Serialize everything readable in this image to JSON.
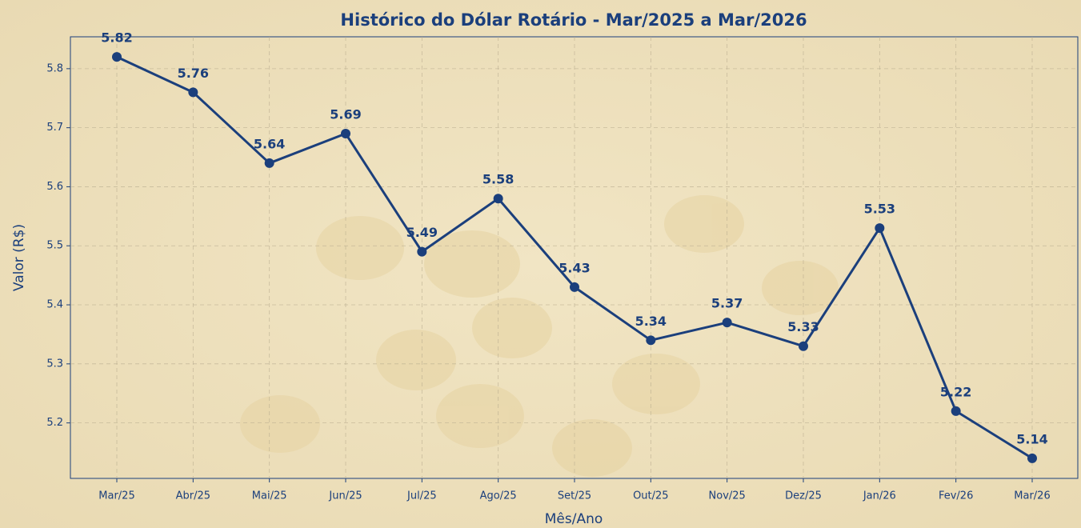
{
  "chart_data": {
    "type": "line",
    "title": "Histórico do Dólar Rotário - Mar/2025 a Mar/2026",
    "x_label": "Mês/Ano",
    "y_label": "Valor (R$)",
    "categories": [
      "Mar/25",
      "Abr/25",
      "Mai/25",
      "Jun/25",
      "Jul/25",
      "Ago/25",
      "Set/25",
      "Out/25",
      "Nov/25",
      "Dez/25",
      "Jan/26",
      "Fev/26",
      "Mar/26"
    ],
    "values": [
      5.82,
      5.76,
      5.64,
      5.69,
      5.49,
      5.58,
      5.43,
      5.34,
      5.37,
      5.33,
      5.53,
      5.22,
      5.14
    ],
    "color": "#1b3f7c",
    "ylim": [
      5.106,
      5.854
    ],
    "yticks": [
      5.2,
      5.3,
      5.4,
      5.5,
      5.6,
      5.7,
      5.8
    ],
    "grid": true
  }
}
